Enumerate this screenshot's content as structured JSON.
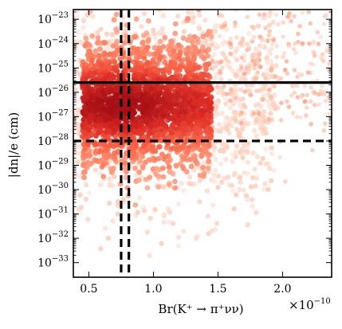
{
  "chart_data": {
    "type": "scatter",
    "title": "",
    "xlabel": "Br(K⁺ → π⁺νν)",
    "ylabel": "|dn|/e (cm)",
    "x_multiplier": "×10",
    "x_multiplier_exp": "−10",
    "xlim": [
      3.8e-11,
      2.38e-10
    ],
    "ylim_log10": [
      -33.6,
      -22.6
    ],
    "y_scale": "log",
    "grid": false,
    "x_ticks": [
      {
        "value": 5e-11,
        "label": "0.5"
      },
      {
        "value": 1e-10,
        "label": "1.0"
      },
      {
        "value": 1.5e-10,
        "label": "1.5"
      },
      {
        "value": 2e-10,
        "label": "2.0"
      }
    ],
    "y_ticks": [
      {
        "exp": -23,
        "label_base": "10",
        "label_exp": "−23"
      },
      {
        "exp": -24,
        "label_base": "10",
        "label_exp": "−24"
      },
      {
        "exp": -25,
        "label_base": "10",
        "label_exp": "−25"
      },
      {
        "exp": -26,
        "label_base": "10",
        "label_exp": "−26"
      },
      {
        "exp": -27,
        "label_base": "10",
        "label_exp": "−27"
      },
      {
        "exp": -28,
        "label_base": "10",
        "label_exp": "−28"
      },
      {
        "exp": -29,
        "label_base": "10",
        "label_exp": "−29"
      },
      {
        "exp": -30,
        "label_base": "10",
        "label_exp": "−30"
      },
      {
        "exp": -31,
        "label_base": "10",
        "label_exp": "−31"
      },
      {
        "exp": -32,
        "label_base": "10",
        "label_exp": "−32"
      },
      {
        "exp": -33,
        "label_base": "10",
        "label_exp": "−33"
      }
    ],
    "reference_lines": [
      {
        "orientation": "horizontal",
        "value_log10": -25.6,
        "style": "solid",
        "color": "#000000"
      },
      {
        "orientation": "horizontal",
        "value_log10": -28.0,
        "style": "dashed",
        "color": "#000000"
      },
      {
        "orientation": "vertical",
        "value": 7.5e-11,
        "style": "dashed",
        "color": "#000000"
      },
      {
        "orientation": "vertical",
        "value": 8.1e-11,
        "style": "dashed",
        "color": "#000000"
      }
    ],
    "density": {
      "x_range": [
        3.8e-11,
        1.95e-10
      ],
      "core_x_range": [
        4.5e-11,
        1.45e-10
      ],
      "y_peak_log10": -26.5,
      "y_spread_log10": 2.0,
      "tail_x_max": 2.38e-10,
      "colormap": [
        "#fff5f0",
        "#fcbba1",
        "#fb6a4a",
        "#de2d26",
        "#a50f15"
      ]
    }
  }
}
